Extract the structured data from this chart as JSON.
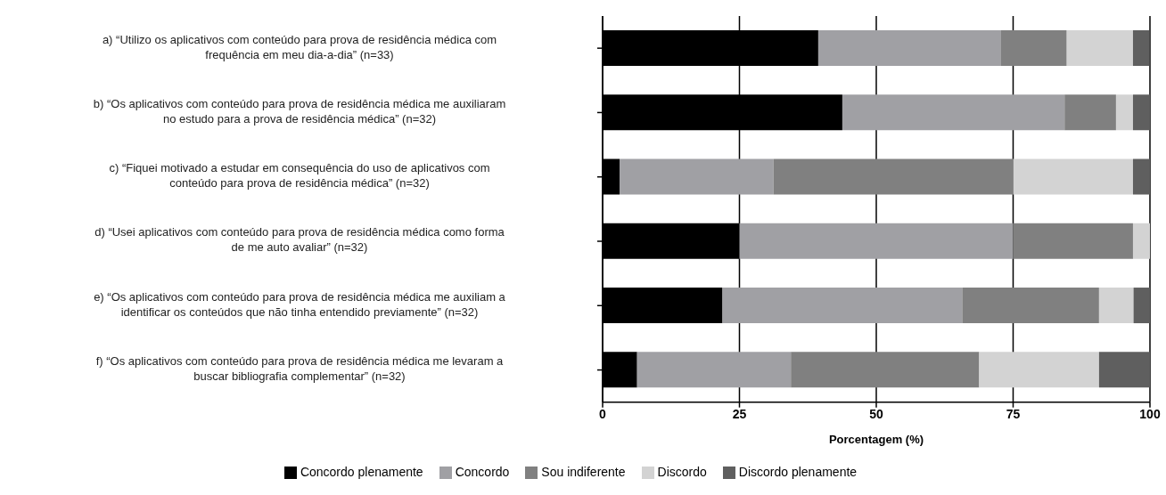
{
  "chart_data": {
    "type": "bar",
    "orientation": "horizontal",
    "stacked": true,
    "xlabel": "Porcentagem (%)",
    "categories": [
      "a) “Utilizo os aplicativos com conteúdo para prova de residência médica com frequência em meu dia-a-dia” (n=33)",
      "b) “Os aplicativos com conteúdo para prova de residência médica me auxiliaram no estudo para a prova de residência médica” (n=32)",
      "c) “Fiquei motivado a estudar em consequência do uso de aplicativos com conteúdo para prova de residência médica” (n=32)",
      "d) “Usei aplicativos com conteúdo para prova de residência médica como forma de me auto avaliar” (n=32)",
      "e) “Os aplicativos com conteúdo para prova de residência médica me auxiliam a identificar os conteúdos que não tinha entendido previamente” (n=32)",
      "f) “Os aplicativos com conteúdo para prova de residência médica me levaram a buscar bibliografia complementar” (n=32)"
    ],
    "series": [
      {
        "name": "Concordo plenamente",
        "color": "#000000",
        "values": [
          39.4,
          43.8,
          3.1,
          25,
          21.9,
          6.3
        ]
      },
      {
        "name": "Concordo",
        "color": "#a0a0a4",
        "values": [
          33.3,
          40.6,
          28.1,
          50,
          43.8,
          28.1
        ]
      },
      {
        "name": "Sou indiferente",
        "color": "#808080",
        "values": [
          12.1,
          9.4,
          43.8,
          21.9,
          25,
          34.4
        ]
      },
      {
        "name": "Discordo",
        "color": "#d3d3d3",
        "values": [
          12.1,
          3.1,
          21.9,
          3.1,
          6.3,
          21.9
        ]
      },
      {
        "name": "Discordo plenamente",
        "color": "#5f5f5f",
        "values": [
          3,
          3.1,
          3.1,
          0,
          3.1,
          9.4
        ]
      }
    ],
    "xlim": [
      0,
      100
    ],
    "xticks": [
      0,
      25,
      50,
      75,
      100
    ],
    "grid": "x",
    "legend": "bottom"
  }
}
